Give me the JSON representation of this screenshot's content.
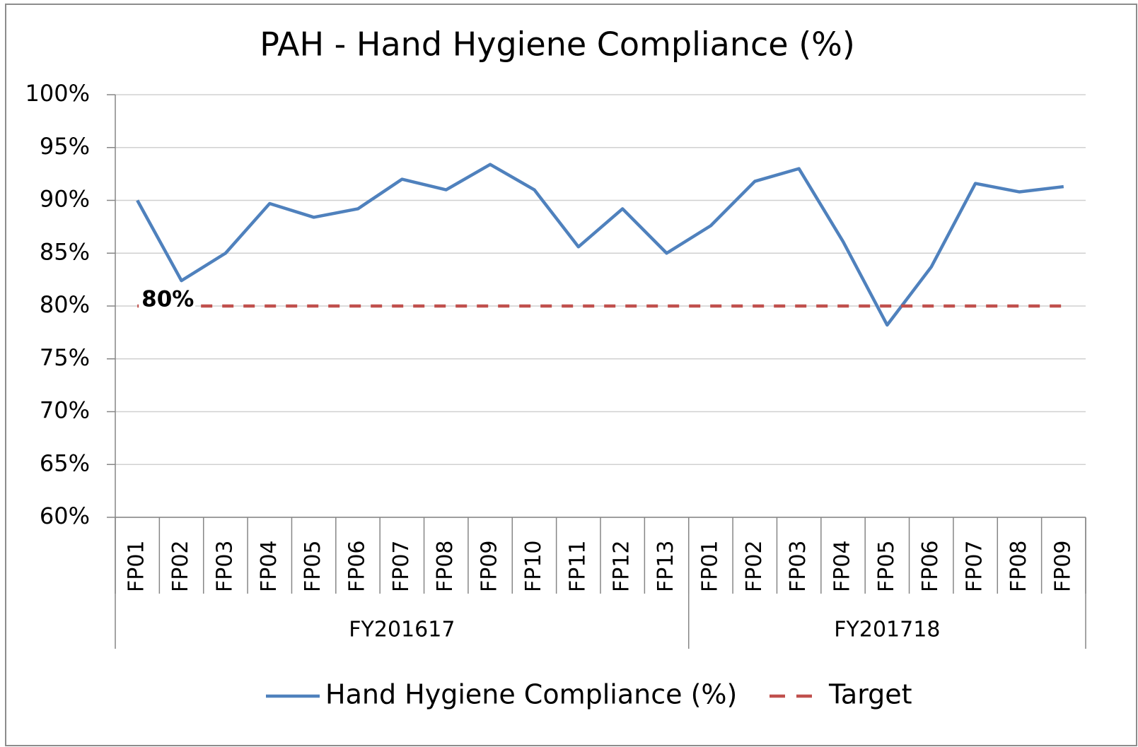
{
  "chart_data": {
    "type": "line",
    "title": "PAH - Hand Hygiene Compliance (%)",
    "categories": [
      "FP01",
      "FP02",
      "FP03",
      "FP04",
      "FP05",
      "FP06",
      "FP07",
      "FP08",
      "FP09",
      "FP10",
      "FP11",
      "FP12",
      "FP13",
      "FP01",
      "FP02",
      "FP03",
      "FP04",
      "FP05",
      "FP06",
      "FP07",
      "FP08",
      "FP09"
    ],
    "category_groups": [
      {
        "label": "FY201617",
        "count": 13
      },
      {
        "label": "FY201718",
        "count": 9
      }
    ],
    "series": [
      {
        "name": "Hand Hygiene Compliance (%)",
        "color": "#4f81bd",
        "dash": false,
        "values": [
          90.0,
          82.4,
          85.0,
          89.7,
          88.4,
          89.2,
          92.0,
          91.0,
          93.4,
          91.0,
          85.6,
          89.2,
          85.0,
          87.6,
          91.8,
          93.0,
          86.1,
          78.2,
          83.7,
          91.6,
          90.8,
          91.3
        ]
      },
      {
        "name": "Target",
        "color": "#c0504d",
        "dash": true,
        "values": [
          80,
          80,
          80,
          80,
          80,
          80,
          80,
          80,
          80,
          80,
          80,
          80,
          80,
          80,
          80,
          80,
          80,
          80,
          80,
          80,
          80,
          80
        ],
        "value_labels": [
          "80%",
          null,
          null,
          null,
          null,
          null,
          null,
          null,
          null,
          null,
          null,
          null,
          null,
          null,
          null,
          null,
          null,
          null,
          null,
          null,
          null,
          null
        ]
      }
    ],
    "ylim": [
      60,
      100
    ],
    "yticks": [
      {
        "value": 60,
        "label": "60%"
      },
      {
        "value": 65,
        "label": "65%"
      },
      {
        "value": 70,
        "label": "70%"
      },
      {
        "value": 75,
        "label": "75%"
      },
      {
        "value": 80,
        "label": "80%"
      },
      {
        "value": 85,
        "label": "85%"
      },
      {
        "value": 90,
        "label": "90%"
      },
      {
        "value": 95,
        "label": "95%"
      },
      {
        "value": 100,
        "label": "100%"
      }
    ],
    "grid": true,
    "legend": "bottom"
  }
}
